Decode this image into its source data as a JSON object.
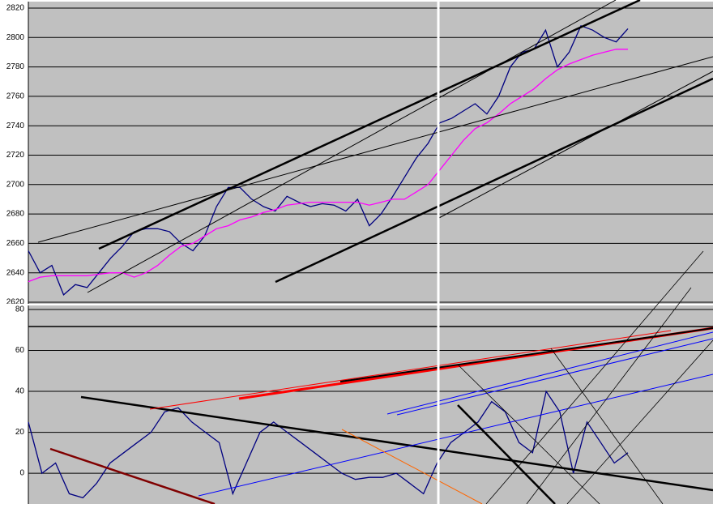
{
  "chart_data": [
    {
      "type": "line",
      "ylim": [
        2620,
        2820
      ],
      "yticks": [
        2620,
        2640,
        2660,
        2680,
        2700,
        2720,
        2740,
        2760,
        2780,
        2800,
        2820
      ],
      "grid": true,
      "series": [
        {
          "color": "#000080",
          "values": [
            2655,
            2640,
            2645,
            2625,
            2632,
            2630,
            2640,
            2650,
            2658,
            2668,
            2670,
            2670,
            2668,
            2660,
            2655,
            2665,
            2685,
            2698,
            2698,
            2690,
            2685,
            2682,
            2692,
            2688,
            2685,
            2687,
            2686,
            2682,
            2690,
            2672,
            2680,
            2692,
            2705,
            2718,
            2728,
            2742,
            2745,
            2750,
            2755,
            2748,
            2760,
            2780,
            2790,
            2792,
            2805,
            2780,
            2790,
            2808,
            2805,
            2800,
            2797,
            2806
          ]
        },
        {
          "color": "#ff00ff",
          "values": [
            2634,
            2637,
            2638,
            2638,
            2638,
            2638,
            2639,
            2640,
            2640,
            2637,
            2640,
            2645,
            2652,
            2658,
            2660,
            2665,
            2670,
            2672,
            2676,
            2678,
            2681,
            2683,
            2686,
            2687,
            2688,
            2688,
            2688,
            2688,
            2688,
            2686,
            2688,
            2690,
            2690,
            2695,
            2700,
            2710,
            2720,
            2730,
            2738,
            2742,
            2748,
            2755,
            2760,
            2765,
            2772,
            2778,
            2782,
            2785,
            2788,
            2790,
            2792,
            2792
          ]
        }
      ]
    },
    {
      "type": "line",
      "ylim": [
        -15,
        80
      ],
      "yticks": [
        0,
        20,
        40,
        60,
        80
      ],
      "grid": true,
      "series": [
        {
          "color": "#000080",
          "values": [
            25,
            0,
            5,
            -10,
            -12,
            -5,
            5,
            10,
            15,
            20,
            30,
            32,
            25,
            20,
            15,
            -10,
            5,
            20,
            25,
            20,
            15,
            10,
            5,
            0,
            -3,
            -2,
            -2,
            0,
            -5,
            -10,
            5,
            15,
            20,
            25,
            35,
            30,
            15,
            10,
            40,
            30,
            0,
            25,
            15,
            5,
            10
          ]
        }
      ]
    }
  ]
}
